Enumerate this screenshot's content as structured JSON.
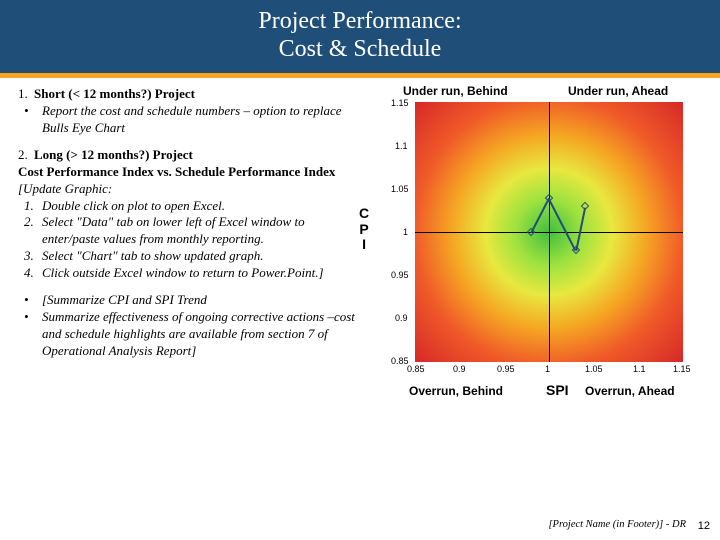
{
  "title_line1": "Project Performance:",
  "title_line2": "Cost & Schedule",
  "left": {
    "sec1_num": "1.",
    "sec1_head": "Short (< 12 months?) Project",
    "sec1_b1_mark": "•",
    "sec1_b1": "Report the cost and schedule numbers – option to replace Bulls Eye Chart",
    "sec2_num": "2.",
    "sec2_head": "Long (> 12 months?) Project",
    "sec2_sub1": "Cost Performance Index vs. Schedule Performance Index",
    "sec2_upd": "[Update Graphic:",
    "sec2_i1_n": "1.",
    "sec2_i1": "Double click on plot to open Excel.",
    "sec2_i2_n": "2.",
    "sec2_i2": "Select \"Data\" tab on lower left of Excel window to enter/paste values from monthly reporting.",
    "sec2_i3_n": "3.",
    "sec2_i3": "Select \"Chart\" tab to show updated graph.",
    "sec2_i4_n": "4.",
    "sec2_i4": "Click outside Excel window to return to Power.Point.]",
    "sec3_b1_mark": "•",
    "sec3_b1": "[Summarize CPI and SPI Trend",
    "sec3_b2_mark": "•",
    "sec3_b2": "Summarize effectiveness of ongoing corrective actions –cost and schedule highlights are available from section 7 of Operational Analysis Report]"
  },
  "chart": {
    "q_tl": "Under run, Behind",
    "q_tr": "Under run, Ahead",
    "q_bl": "Overrun, Behind",
    "q_br": "Overrun, Ahead",
    "ylab_c": "C",
    "ylab_p": "P",
    "ylab_i": "I",
    "xlab": "SPI",
    "yticks": [
      "1.15",
      "1.1",
      "1.05",
      "1",
      "0.95",
      "0.9",
      "0.85"
    ],
    "xticks": [
      "0.85",
      "0.9",
      "0.95",
      "1",
      "1.05",
      "1.1",
      "1.15"
    ],
    "background_color": "#ffffff",
    "series_color": "#1f4e79",
    "points": [
      {
        "x": 0.98,
        "y": 1.0
      },
      {
        "x": 1.0,
        "y": 1.04
      },
      {
        "x": 1.03,
        "y": 0.98
      },
      {
        "x": 1.04,
        "y": 1.03
      }
    ],
    "xlim": [
      0.85,
      1.15
    ],
    "ylim": [
      0.85,
      1.15
    ]
  },
  "footer": "[Project Name (in Footer)] - DR",
  "pagenum": "12"
}
